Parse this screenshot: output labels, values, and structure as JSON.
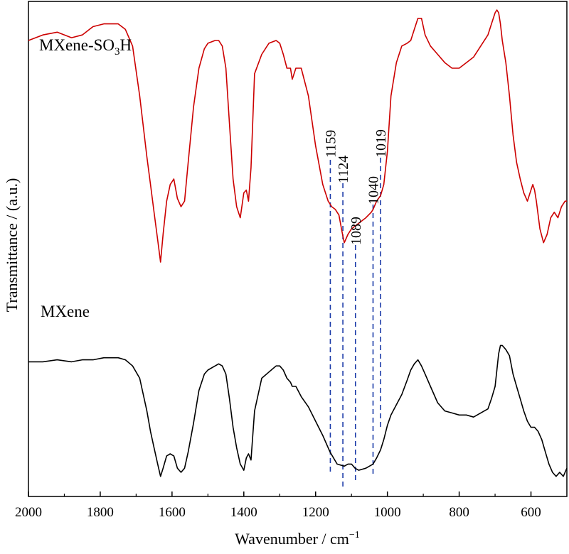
{
  "chart_data": {
    "type": "line",
    "title": "",
    "xlabel": "Wavenumber / cm",
    "xlabel_sup": "−1",
    "ylabel": "Transmittance / (a.u.)",
    "xlim": [
      2000,
      500
    ],
    "x_reversed": true,
    "x_ticks": [
      2000,
      1800,
      1600,
      1400,
      1200,
      1000,
      800,
      600
    ],
    "y_ticks_shown": false,
    "grid": false,
    "legend": "none",
    "series": [
      {
        "name": "MXene-SO₃H",
        "label_main": "MXene-SO",
        "label_sub": "3",
        "label_tail": "H",
        "color": "#cc0000",
        "x": [
          2000,
          1960,
          1920,
          1880,
          1850,
          1820,
          1790,
          1770,
          1750,
          1730,
          1710,
          1690,
          1670,
          1660,
          1650,
          1640,
          1632,
          1625,
          1615,
          1605,
          1595,
          1585,
          1575,
          1565,
          1555,
          1540,
          1525,
          1510,
          1500,
          1480,
          1470,
          1460,
          1450,
          1440,
          1430,
          1420,
          1410,
          1400,
          1393,
          1387,
          1380,
          1370,
          1350,
          1330,
          1310,
          1300,
          1290,
          1280,
          1270,
          1265,
          1255,
          1240,
          1220,
          1200,
          1180,
          1165,
          1155,
          1145,
          1135,
          1125,
          1120,
          1110,
          1100,
          1090,
          1080,
          1060,
          1045,
          1040,
          1030,
          1019,
          1010,
          1000,
          990,
          975,
          960,
          945,
          935,
          925,
          915,
          905,
          895,
          880,
          860,
          840,
          820,
          800,
          780,
          760,
          740,
          720,
          710,
          700,
          695,
          690,
          685,
          680,
          670,
          660,
          650,
          640,
          630,
          620,
          610,
          600,
          595,
          590,
          585,
          575,
          565,
          555,
          545,
          535,
          525,
          515,
          505,
          500
        ],
        "y": [
          90,
          92,
          93,
          91,
          92,
          95,
          96,
          96,
          96,
          94,
          88,
          70,
          48,
          38,
          28,
          18,
          10,
          20,
          32,
          38,
          40,
          33,
          30,
          32,
          46,
          66,
          80,
          87,
          89,
          90,
          90,
          88,
          80,
          60,
          40,
          30,
          26,
          35,
          36,
          32,
          44,
          78,
          85,
          89,
          90,
          89,
          85,
          80,
          80,
          76,
          80,
          80,
          70,
          52,
          38,
          32,
          30,
          29,
          27,
          20,
          17,
          20,
          22,
          23,
          24,
          26,
          28,
          29,
          32,
          34,
          38,
          50,
          70,
          82,
          88,
          89,
          90,
          94,
          98,
          98,
          92,
          88,
          85,
          82,
          80,
          80,
          82,
          84,
          88,
          92,
          96,
          100,
          101,
          100,
          96,
          90,
          82,
          70,
          56,
          46,
          40,
          35,
          32,
          36,
          38,
          36,
          32,
          22,
          17,
          20,
          26,
          28,
          26,
          30,
          32,
          32
        ]
      },
      {
        "name": "MXene",
        "label_main": "MXene",
        "color": "#000000",
        "x": [
          2000,
          1960,
          1920,
          1880,
          1850,
          1820,
          1790,
          1770,
          1750,
          1730,
          1710,
          1690,
          1670,
          1660,
          1650,
          1640,
          1632,
          1625,
          1615,
          1605,
          1595,
          1585,
          1575,
          1565,
          1555,
          1540,
          1525,
          1510,
          1500,
          1480,
          1470,
          1460,
          1450,
          1440,
          1430,
          1420,
          1410,
          1400,
          1393,
          1387,
          1380,
          1370,
          1350,
          1330,
          1310,
          1300,
          1290,
          1280,
          1270,
          1265,
          1255,
          1240,
          1220,
          1200,
          1180,
          1160,
          1140,
          1120,
          1110,
          1100,
          1090,
          1080,
          1060,
          1040,
          1030,
          1019,
          1010,
          1000,
          990,
          975,
          960,
          945,
          935,
          925,
          915,
          905,
          895,
          880,
          860,
          840,
          820,
          800,
          780,
          760,
          740,
          720,
          710,
          700,
          695,
          690,
          685,
          680,
          670,
          660,
          650,
          640,
          630,
          620,
          610,
          600,
          590,
          580,
          570,
          560,
          550,
          540,
          530,
          520,
          510,
          500
        ],
        "y": [
          62,
          62,
          63,
          62,
          63,
          63,
          64,
          64,
          64,
          63,
          60,
          54,
          38,
          28,
          20,
          12,
          6,
          10,
          16,
          17,
          16,
          10,
          8,
          10,
          18,
          32,
          48,
          56,
          58,
          60,
          61,
          60,
          56,
          44,
          30,
          20,
          12,
          9,
          15,
          17,
          14,
          38,
          54,
          57,
          60,
          60,
          58,
          54,
          52,
          50,
          50,
          45,
          40,
          33,
          26,
          18,
          12,
          11,
          12,
          12,
          10,
          9,
          10,
          12,
          15,
          19,
          24,
          31,
          36,
          41,
          46,
          53,
          58,
          61,
          63,
          60,
          56,
          50,
          42,
          38,
          37,
          36,
          36,
          35,
          37,
          39,
          44,
          50,
          58,
          66,
          70,
          70,
          68,
          65,
          56,
          50,
          44,
          38,
          33,
          30,
          30,
          28,
          24,
          18,
          12,
          8,
          6,
          8,
          6,
          10
        ]
      }
    ],
    "annotations": [
      {
        "label": "1159",
        "x": 1159
      },
      {
        "label": "1124",
        "x": 1124
      },
      {
        "label": "1089",
        "x": 1089
      },
      {
        "label": "1040",
        "x": 1040
      },
      {
        "label": "1019",
        "x": 1019
      }
    ]
  }
}
